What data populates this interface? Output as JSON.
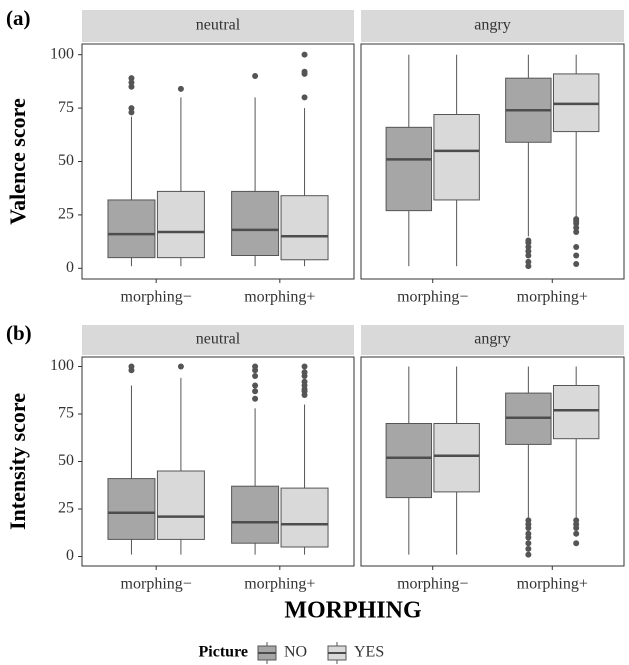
{
  "chart_data": {
    "type": "box",
    "xlabel": "MORPHING",
    "legend_title": "Picture",
    "series": [
      {
        "name": "NO",
        "color": "#a6a6a6"
      },
      {
        "name": "YES",
        "color": "#d9d9d9"
      }
    ],
    "categories": [
      "morphing−",
      "morphing+"
    ],
    "rows": [
      {
        "label": "(a)",
        "ylabel": "Valence score",
        "ylim": [
          -5,
          105
        ],
        "yticks": [
          0,
          25,
          50,
          75,
          100
        ],
        "facets": [
          {
            "title": "neutral",
            "boxes": [
              [
                {
                  "min": 1,
                  "q1": 5,
                  "median": 16,
                  "q3": 32,
                  "max": 71,
                  "outliers": [
                    73,
                    75,
                    85,
                    87,
                    89
                  ]
                },
                {
                  "min": 1,
                  "q1": 6,
                  "median": 18,
                  "q3": 36,
                  "max": 80,
                  "outliers": [
                    90
                  ]
                }
              ],
              [
                {
                  "min": 1,
                  "q1": 5,
                  "median": 17,
                  "q3": 36,
                  "max": 80,
                  "outliers": [
                    84
                  ]
                },
                {
                  "min": 1,
                  "q1": 4,
                  "median": 15,
                  "q3": 34,
                  "max": 75,
                  "outliers": [
                    80,
                    91,
                    92,
                    100
                  ]
                }
              ]
            ]
          },
          {
            "title": "angry",
            "boxes": [
              [
                {
                  "min": 1,
                  "q1": 27,
                  "median": 51,
                  "q3": 66,
                  "max": 100,
                  "outliers": []
                },
                {
                  "min": 15,
                  "q1": 59,
                  "median": 74,
                  "q3": 89,
                  "max": 100,
                  "outliers": [
                    1,
                    3,
                    6,
                    8,
                    10,
                    12,
                    13
                  ]
                }
              ],
              [
                {
                  "min": 1,
                  "q1": 32,
                  "median": 55,
                  "q3": 72,
                  "max": 100,
                  "outliers": []
                },
                {
                  "min": 24,
                  "q1": 64,
                  "median": 77,
                  "q3": 91,
                  "max": 100,
                  "outliers": [
                    2,
                    6,
                    10,
                    17,
                    19,
                    21,
                    22,
                    23
                  ]
                }
              ]
            ]
          }
        ]
      },
      {
        "label": "(b)",
        "ylabel": "Intensity score",
        "ylim": [
          -5,
          105
        ],
        "yticks": [
          0,
          25,
          50,
          75,
          100
        ],
        "facets": [
          {
            "title": "neutral",
            "boxes": [
              [
                {
                  "min": 1,
                  "q1": 9,
                  "median": 23,
                  "q3": 41,
                  "max": 90,
                  "outliers": [
                    98,
                    100
                  ]
                },
                {
                  "min": 1,
                  "q1": 7,
                  "median": 18,
                  "q3": 37,
                  "max": 78,
                  "outliers": [
                    83,
                    87,
                    90,
                    95,
                    98,
                    100
                  ]
                }
              ],
              [
                {
                  "min": 1,
                  "q1": 9,
                  "median": 21,
                  "q3": 45,
                  "max": 94,
                  "outliers": [
                    100
                  ]
                },
                {
                  "min": 1,
                  "q1": 5,
                  "median": 17,
                  "q3": 36,
                  "max": 80,
                  "outliers": [
                    85,
                    87,
                    88,
                    90,
                    92,
                    95,
                    97,
                    100
                  ]
                }
              ]
            ]
          },
          {
            "title": "angry",
            "boxes": [
              [
                {
                  "min": 1,
                  "q1": 31,
                  "median": 52,
                  "q3": 70,
                  "max": 100,
                  "outliers": []
                },
                {
                  "min": 20,
                  "q1": 59,
                  "median": 73,
                  "q3": 86,
                  "max": 100,
                  "outliers": [
                    1,
                    4,
                    7,
                    10,
                    12,
                    15,
                    17,
                    19
                  ]
                }
              ],
              [
                {
                  "min": 1,
                  "q1": 34,
                  "median": 53,
                  "q3": 70,
                  "max": 100,
                  "outliers": []
                },
                {
                  "min": 20,
                  "q1": 62,
                  "median": 77,
                  "q3": 90,
                  "max": 100,
                  "outliers": [
                    7,
                    12,
                    15,
                    17,
                    19
                  ]
                }
              ]
            ]
          }
        ]
      }
    ]
  }
}
